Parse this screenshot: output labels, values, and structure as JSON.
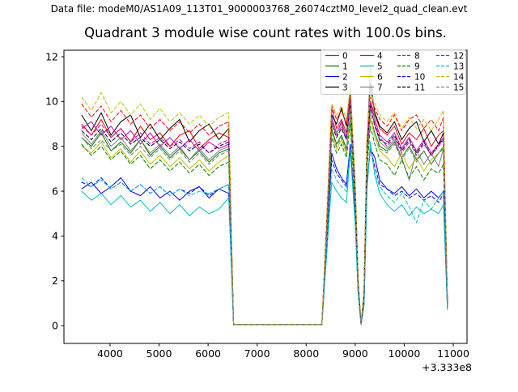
{
  "figure": {
    "header": "Data file: modeM0/AS1A09_113T01_9000003768_26074cztM0_level2_quad_clean.evt",
    "background": "#ffffff"
  },
  "chart_data": {
    "type": "line",
    "title": "Quadrant 3 module wise count rates with 100.0s bins.",
    "xlabel": "",
    "ylabel": "",
    "x_axis_offset_label": "+3.333e8",
    "x_units_note": "x tick values are seconds relative to +3.333e8",
    "xlim": [
      3060,
      11280
    ],
    "ylim": [
      -0.79,
      12.29
    ],
    "xticks": [
      4000,
      5000,
      6000,
      7000,
      8000,
      9000,
      10000,
      11000
    ],
    "yticks": [
      0,
      2,
      4,
      6,
      8,
      10,
      12
    ],
    "grid": false,
    "legend_position": "upper right",
    "legend_columns": 4,
    "x": [
      3420,
      3620,
      3820,
      4020,
      4220,
      4420,
      4620,
      4820,
      5020,
      5220,
      5420,
      5620,
      5820,
      6020,
      6220,
      6420,
      6520,
      6800,
      7200,
      7600,
      8000,
      8320,
      8420,
      8520,
      8620,
      8720,
      8820,
      8900,
      9000,
      9060,
      9120,
      9180,
      9240,
      9310,
      9400,
      9500,
      9650,
      9800,
      9950,
      10100,
      10250,
      10400,
      10550,
      10700,
      10800,
      10880
    ],
    "series": [
      {
        "name": "0",
        "color": "#ff0000",
        "style": "solid",
        "values": [
          9.0,
          8.5,
          9.2,
          8.4,
          8.8,
          8.2,
          8.9,
          8.3,
          8.6,
          8.0,
          8.5,
          8.7,
          7.9,
          8.3,
          8.6,
          8.4,
          0.05,
          0.05,
          0.05,
          0.05,
          0.05,
          0.05,
          4.5,
          9.7,
          8.8,
          9.2,
          8.6,
          10.3,
          6.0,
          2.0,
          0.05,
          1.5,
          8.0,
          10.0,
          9.4,
          8.8,
          8.5,
          8.9,
          8.1,
          8.6,
          8.3,
          8.8,
          8.0,
          8.5,
          8.7,
          1.0
        ]
      },
      {
        "name": "1",
        "color": "#008000",
        "style": "solid",
        "values": [
          8.4,
          8.0,
          8.6,
          7.8,
          8.2,
          7.7,
          8.3,
          7.6,
          8.0,
          7.5,
          7.9,
          7.4,
          7.8,
          7.3,
          7.7,
          7.9,
          0.05,
          0.05,
          0.05,
          0.05,
          0.05,
          0.05,
          4.2,
          8.8,
          8.1,
          8.5,
          7.9,
          9.3,
          5.6,
          1.8,
          0.05,
          1.2,
          7.4,
          9.2,
          8.6,
          8.0,
          7.8,
          8.2,
          7.5,
          8.0,
          7.4,
          7.8,
          7.2,
          7.7,
          7.9,
          0.9
        ]
      },
      {
        "name": "2",
        "color": "#0000ff",
        "style": "solid",
        "values": [
          6.1,
          6.4,
          5.9,
          6.2,
          6.6,
          6.0,
          5.8,
          6.2,
          5.7,
          6.0,
          5.6,
          6.0,
          6.2,
          5.7,
          6.1,
          5.9,
          0.05,
          0.05,
          0.05,
          0.05,
          0.05,
          0.05,
          3.5,
          7.7,
          7.0,
          6.6,
          6.3,
          8.1,
          4.8,
          1.5,
          0.05,
          1.0,
          6.4,
          7.9,
          7.5,
          6.5,
          6.1,
          5.9,
          6.2,
          5.8,
          6.1,
          5.7,
          6.0,
          5.7,
          6.0,
          0.8
        ]
      },
      {
        "name": "3",
        "color": "#000000",
        "style": "solid",
        "values": [
          9.4,
          8.7,
          9.5,
          8.5,
          9.1,
          9.4,
          8.4,
          9.0,
          8.3,
          8.8,
          9.2,
          8.2,
          8.7,
          9.0,
          8.3,
          8.8,
          0.05,
          0.05,
          0.05,
          0.05,
          0.05,
          0.05,
          4.6,
          9.4,
          9.0,
          9.7,
          8.9,
          10.6,
          6.2,
          2.0,
          0.05,
          1.5,
          8.2,
          10.8,
          9.5,
          8.9,
          8.6,
          9.1,
          8.3,
          8.8,
          9.1,
          8.2,
          8.7,
          8.1,
          8.6,
          1.1
        ]
      },
      {
        "name": "4",
        "color": "#bf00bf",
        "style": "solid",
        "values": [
          8.8,
          9.1,
          8.5,
          8.9,
          8.3,
          8.7,
          8.1,
          8.6,
          8.0,
          8.4,
          7.9,
          8.3,
          7.8,
          8.2,
          7.9,
          8.1,
          0.05,
          0.05,
          0.05,
          0.05,
          0.05,
          0.05,
          4.4,
          9.3,
          8.6,
          9.1,
          8.4,
          10.2,
          5.9,
          1.9,
          0.05,
          1.4,
          7.8,
          9.9,
          9.2,
          8.5,
          8.2,
          8.6,
          7.9,
          8.4,
          7.8,
          8.3,
          7.7,
          8.1,
          8.4,
          1.0
        ]
      },
      {
        "name": "5",
        "color": "#00bfbf",
        "style": "solid",
        "values": [
          6.0,
          5.6,
          5.9,
          5.4,
          5.8,
          5.3,
          5.6,
          5.1,
          5.5,
          5.0,
          5.4,
          4.9,
          5.3,
          5.0,
          5.2,
          5.7,
          0.05,
          0.05,
          0.05,
          0.05,
          0.05,
          0.05,
          3.2,
          6.4,
          6.0,
          5.7,
          5.5,
          7.8,
          4.5,
          1.4,
          0.05,
          0.9,
          6.0,
          8.2,
          6.7,
          5.9,
          5.4,
          5.1,
          5.4,
          4.9,
          5.3,
          5.0,
          5.2,
          5.0,
          5.4,
          0.7
        ]
      },
      {
        "name": "6",
        "color": "#bfbf00",
        "style": "solid",
        "values": [
          8.0,
          7.7,
          8.2,
          7.5,
          7.9,
          7.3,
          7.8,
          7.2,
          7.6,
          7.1,
          7.5,
          7.0,
          7.4,
          6.9,
          7.3,
          7.6,
          0.05,
          0.05,
          0.05,
          0.05,
          0.05,
          0.05,
          4.0,
          8.6,
          7.9,
          8.3,
          7.7,
          9.5,
          5.5,
          1.7,
          0.05,
          1.2,
          7.2,
          9.3,
          8.4,
          7.8,
          7.5,
          7.1,
          7.7,
          7.0,
          7.5,
          6.9,
          7.4,
          7.7,
          8.0,
          0.9
        ]
      },
      {
        "name": "7",
        "color": "#808080",
        "style": "solid",
        "values": [
          8.6,
          8.1,
          8.7,
          8.0,
          8.4,
          7.8,
          8.3,
          7.7,
          8.1,
          7.6,
          8.0,
          7.4,
          7.9,
          7.4,
          7.8,
          8.0,
          0.05,
          0.05,
          0.05,
          0.05,
          0.05,
          0.05,
          4.5,
          9.2,
          8.6,
          9.0,
          8.4,
          10.8,
          6.0,
          2.0,
          0.05,
          1.5,
          8.0,
          11.7,
          9.0,
          8.2,
          7.9,
          8.3,
          7.5,
          6.5,
          7.8,
          7.2,
          7.7,
          7.1,
          7.9,
          1.0
        ]
      },
      {
        "name": "8",
        "color": "#ff0000",
        "style": "dashed",
        "values": [
          9.9,
          9.3,
          9.8,
          9.1,
          9.6,
          9.0,
          9.4,
          8.8,
          9.2,
          8.7,
          9.1,
          8.6,
          9.0,
          8.5,
          8.9,
          9.1,
          0.05,
          0.05,
          0.05,
          0.05,
          0.05,
          0.05,
          4.8,
          9.8,
          9.2,
          9.6,
          9.0,
          10.4,
          6.3,
          2.1,
          0.05,
          1.6,
          8.4,
          10.2,
          9.7,
          9.2,
          8.9,
          9.4,
          8.7,
          9.2,
          9.4,
          8.8,
          9.2,
          8.7,
          9.3,
          1.1
        ]
      },
      {
        "name": "9",
        "color": "#008000",
        "style": "dashed",
        "values": [
          8.1,
          7.6,
          8.0,
          7.4,
          7.8,
          7.2,
          7.6,
          7.0,
          7.4,
          6.9,
          7.3,
          6.8,
          7.2,
          6.7,
          7.1,
          7.3,
          0.05,
          0.05,
          0.05,
          0.05,
          0.05,
          0.05,
          3.9,
          8.4,
          7.7,
          8.1,
          7.5,
          9.0,
          5.3,
          1.7,
          0.05,
          1.1,
          7.0,
          8.9,
          8.1,
          7.4,
          7.2,
          6.7,
          7.4,
          6.6,
          7.1,
          6.5,
          7.0,
          6.8,
          7.2,
          0.9
        ]
      },
      {
        "name": "10",
        "color": "#0000ff",
        "style": "dashed",
        "values": [
          6.4,
          6.2,
          6.6,
          6.1,
          6.4,
          6.0,
          6.3,
          5.9,
          6.2,
          5.8,
          6.1,
          5.9,
          6.2,
          5.8,
          6.1,
          6.3,
          0.05,
          0.05,
          0.05,
          0.05,
          0.05,
          0.05,
          3.6,
          7.4,
          6.8,
          6.5,
          6.2,
          8.0,
          4.7,
          1.5,
          0.05,
          1.0,
          6.3,
          7.9,
          7.1,
          6.3,
          6.1,
          5.8,
          6.0,
          5.7,
          5.9,
          5.6,
          5.8,
          5.5,
          5.9,
          0.8
        ]
      },
      {
        "name": "11",
        "color": "#000000",
        "style": "dashed",
        "values": [
          8.7,
          8.3,
          8.8,
          8.2,
          8.6,
          8.1,
          8.4,
          8.0,
          8.3,
          7.9,
          8.2,
          7.8,
          8.1,
          7.7,
          8.0,
          8.2,
          0.05,
          0.05,
          0.05,
          0.05,
          0.05,
          0.05,
          4.3,
          9.0,
          8.4,
          8.8,
          8.3,
          10.0,
          5.8,
          1.9,
          0.05,
          1.3,
          7.7,
          9.8,
          8.9,
          8.3,
          8.1,
          8.5,
          7.8,
          8.3,
          7.7,
          8.2,
          7.6,
          8.1,
          8.3,
          1.0
        ]
      },
      {
        "name": "12",
        "color": "#bf00bf",
        "style": "dashed",
        "values": [
          8.9,
          8.5,
          9.0,
          8.4,
          8.8,
          8.2,
          8.6,
          8.1,
          8.4,
          8.0,
          8.3,
          7.9,
          8.2,
          7.7,
          8.1,
          8.3,
          0.05,
          0.05,
          0.05,
          0.05,
          0.05,
          0.05,
          4.4,
          9.1,
          8.5,
          8.9,
          8.3,
          10.0,
          5.8,
          1.9,
          0.05,
          1.4,
          7.8,
          9.7,
          9.0,
          8.4,
          8.0,
          8.4,
          7.7,
          8.2,
          7.6,
          8.1,
          7.6,
          8.0,
          8.3,
          1.0
        ]
      },
      {
        "name": "13",
        "color": "#00bfbf",
        "style": "dashed",
        "values": [
          6.6,
          6.2,
          6.5,
          6.1,
          6.4,
          6.0,
          6.3,
          5.9,
          6.2,
          5.8,
          6.1,
          5.8,
          6.0,
          5.9,
          6.1,
          6.3,
          0.05,
          0.05,
          0.05,
          0.05,
          0.05,
          0.05,
          3.5,
          7.0,
          6.5,
          6.2,
          6.0,
          7.9,
          4.6,
          1.5,
          0.05,
          1.0,
          6.1,
          8.0,
          6.8,
          6.2,
          5.8,
          5.5,
          5.9,
          5.3,
          4.6,
          5.6,
          5.2,
          5.7,
          6.0,
          0.8
        ]
      },
      {
        "name": "14",
        "color": "#bfbf00",
        "style": "dashed",
        "values": [
          10.2,
          9.6,
          10.4,
          9.5,
          10.0,
          9.4,
          9.9,
          9.2,
          9.7,
          9.1,
          9.5,
          9.0,
          9.4,
          8.9,
          9.3,
          9.5,
          0.05,
          0.05,
          0.05,
          0.05,
          0.05,
          0.05,
          4.9,
          9.9,
          9.4,
          9.8,
          9.2,
          10.6,
          6.4,
          2.2,
          0.05,
          1.7,
          8.5,
          10.4,
          9.9,
          9.4,
          9.1,
          9.5,
          8.8,
          9.3,
          8.8,
          9.2,
          8.7,
          9.2,
          9.6,
          1.2
        ]
      },
      {
        "name": "15",
        "color": "#808080",
        "style": "dashed",
        "values": [
          8.4,
          7.9,
          8.3,
          7.8,
          8.1,
          7.6,
          8.0,
          7.5,
          7.9,
          7.4,
          7.8,
          7.3,
          7.7,
          7.2,
          7.6,
          7.8,
          0.05,
          0.05,
          0.05,
          0.05,
          0.05,
          0.05,
          4.1,
          8.7,
          8.0,
          8.4,
          7.8,
          9.7,
          5.6,
          1.8,
          0.05,
          1.2,
          7.3,
          9.5,
          8.6,
          7.9,
          7.7,
          8.1,
          7.4,
          7.9,
          7.3,
          7.8,
          7.2,
          7.7,
          8.0,
          0.9
        ]
      }
    ]
  }
}
